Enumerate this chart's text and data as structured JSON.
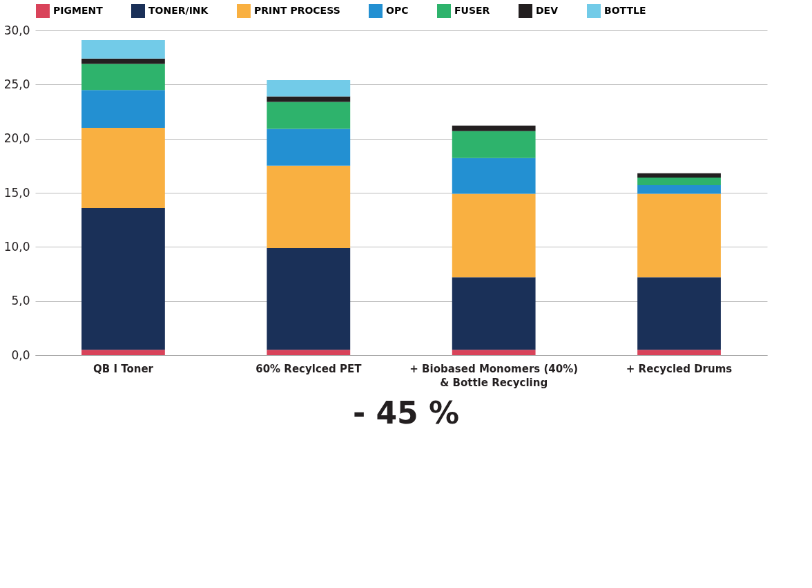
{
  "chart_data": {
    "type": "bar",
    "stacked": true,
    "categories": [
      "QB I Toner",
      "60% Recylced PET",
      "+ Biobased Monomers (40%) & Bottle Recycling",
      "+ Recycled Drums"
    ],
    "series": [
      {
        "name": "PIGMENT",
        "color": "#d9435a",
        "values": [
          0.5,
          0.5,
          0.5,
          0.5
        ]
      },
      {
        "name": "TONER/INK",
        "color": "#1a3058",
        "values": [
          13.1,
          9.4,
          6.7,
          6.7
        ]
      },
      {
        "name": "PRINT PROCESS",
        "color": "#f9b041",
        "values": [
          7.4,
          7.6,
          7.7,
          7.7
        ]
      },
      {
        "name": "OPC",
        "color": "#2390d2",
        "values": [
          3.5,
          3.4,
          3.3,
          0.8
        ]
      },
      {
        "name": "FUSER",
        "color": "#2eb36c",
        "values": [
          2.4,
          2.5,
          2.5,
          0.7
        ]
      },
      {
        "name": "DEV",
        "color": "#231f20",
        "values": [
          0.5,
          0.5,
          0.5,
          0.4
        ]
      },
      {
        "name": "BOTTLE",
        "color": "#72cbe8",
        "values": [
          1.7,
          1.5,
          null,
          null
        ]
      }
    ],
    "ylim": [
      0,
      30
    ],
    "yticks": [
      {
        "value": 0,
        "label": "0,0"
      },
      {
        "value": 5,
        "label": "5,0"
      },
      {
        "value": 10,
        "label": "10,0"
      },
      {
        "value": 15,
        "label": "15,0"
      },
      {
        "value": 20,
        "label": "20,0"
      },
      {
        "value": 25,
        "label": "25,0"
      },
      {
        "value": 30,
        "label": "30,0"
      }
    ],
    "grid": "y",
    "legend": "top",
    "annotations": [
      "- 45 %"
    ]
  }
}
